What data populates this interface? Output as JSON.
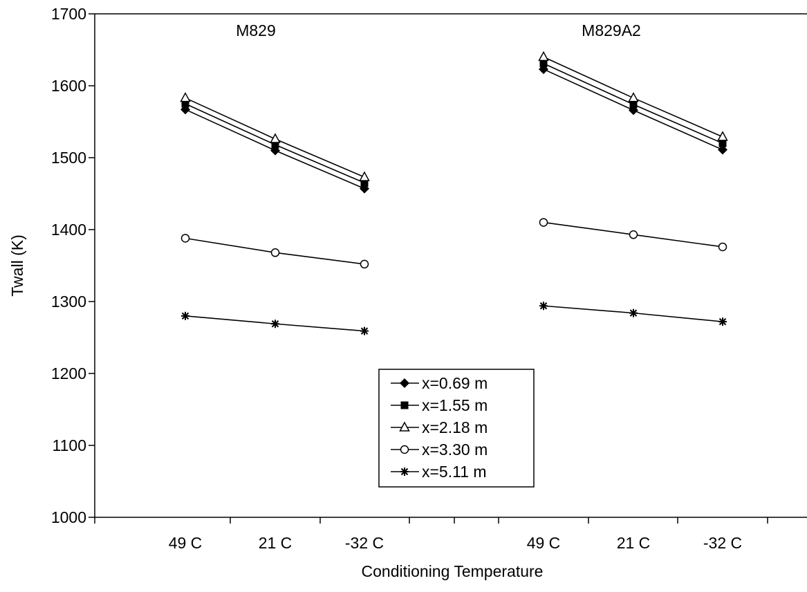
{
  "chart_data": {
    "type": "line",
    "xlabel": "Conditioning Temperature",
    "ylabel": "Twall (K)",
    "ylim": [
      1000,
      1700
    ],
    "yticks": [
      1000,
      1100,
      1200,
      1300,
      1400,
      1500,
      1600,
      1700
    ],
    "grid": false,
    "legend_position": "bottom-center",
    "groups": [
      {
        "label": "M829",
        "categories": [
          "49 C",
          "21 C",
          "-32 C"
        ],
        "series": [
          {
            "name": "x=0.69 m",
            "marker": "diamond",
            "values": [
              1567,
              1510,
              1457
            ]
          },
          {
            "name": "x=1.55 m",
            "marker": "square",
            "values": [
              1575,
              1518,
              1465
            ]
          },
          {
            "name": "x=2.18 m",
            "marker": "triangle-open",
            "values": [
              1583,
              1526,
              1473
            ]
          },
          {
            "name": "x=3.30 m",
            "marker": "circle-open",
            "values": [
              1388,
              1368,
              1352
            ]
          },
          {
            "name": "x=5.11 m",
            "marker": "asterisk",
            "values": [
              1280,
              1269,
              1259
            ]
          }
        ]
      },
      {
        "label": "M829A2",
        "categories": [
          "49 C",
          "21 C",
          "-32 C"
        ],
        "series": [
          {
            "name": "x=0.69 m",
            "marker": "diamond",
            "values": [
              1623,
              1566,
              1511
            ]
          },
          {
            "name": "x=1.55 m",
            "marker": "square",
            "values": [
              1631,
              1574,
              1520
            ]
          },
          {
            "name": "x=2.18 m",
            "marker": "triangle-open",
            "values": [
              1640,
              1583,
              1529
            ]
          },
          {
            "name": "x=3.30 m",
            "marker": "circle-open",
            "values": [
              1410,
              1393,
              1376
            ]
          },
          {
            "name": "x=5.11 m",
            "marker": "asterisk",
            "values": [
              1294,
              1284,
              1272
            ]
          }
        ]
      }
    ],
    "legend": [
      "x=0.69 m",
      "x=1.55 m",
      "x=2.18 m",
      "x=3.30 m",
      "x=5.11 m"
    ],
    "colors": {
      "line": "#000000",
      "background": "#ffffff"
    }
  }
}
